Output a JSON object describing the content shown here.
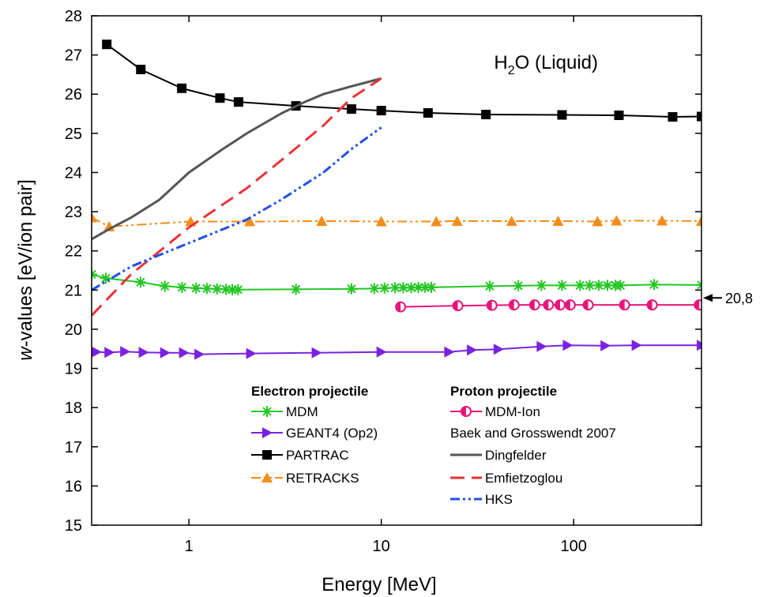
{
  "chart_data": {
    "type": "line",
    "title": [
      "H",
      "2",
      "O (Liquid)"
    ],
    "xlabel": "Energy [MeV]",
    "ylabel": [
      "w",
      "-values [eV/ion pair]"
    ],
    "xscale": "log",
    "xlim": [
      0.312,
      462
    ],
    "xticks": [
      1,
      10,
      100
    ],
    "ylim": [
      15,
      28
    ],
    "yticks": [
      15,
      16,
      17,
      18,
      19,
      20,
      21,
      22,
      23,
      24,
      25,
      26,
      27,
      28
    ],
    "legend_headings": [
      "Electron projectile",
      "Proton projectile",
      "Baek and Grosswendt 2007"
    ],
    "annotation": {
      "value": 20.8,
      "label": "20,8"
    },
    "series": [
      {
        "name": "MDM",
        "color": "#22c722",
        "marker": "asterisk",
        "dash": "solid",
        "x": [
          0.312,
          0.37,
          0.56,
          0.75,
          0.92,
          1.09,
          1.24,
          1.4,
          1.56,
          1.68,
          1.8,
          3.6,
          7,
          9.2,
          10.4,
          11.8,
          13,
          14.3,
          15.6,
          16.9,
          18.2,
          36.6,
          51.6,
          68,
          87,
          108,
          121,
          135,
          150,
          165,
          175,
          262,
          462
        ],
        "values": [
          21.4,
          21.3,
          21.2,
          21.1,
          21.07,
          21.05,
          21.04,
          21.03,
          21.02,
          21.01,
          21.01,
          21.02,
          21.03,
          21.04,
          21.05,
          21.06,
          21.06,
          21.06,
          21.07,
          21.07,
          21.07,
          21.1,
          21.11,
          21.12,
          21.12,
          21.12,
          21.12,
          21.12,
          21.12,
          21.12,
          21.12,
          21.14,
          21.13
        ]
      },
      {
        "name": "GEANT4 (Op2)",
        "color": "#7a22e0",
        "marker": "triangle-right",
        "dash": "solid",
        "x": [
          0.33,
          0.385,
          0.465,
          0.58,
          0.75,
          0.94,
          1.13,
          2.1,
          4.6,
          10,
          22.5,
          29.5,
          40.6,
          68,
          93,
          146,
          212,
          462
        ],
        "values": [
          19.42,
          19.41,
          19.43,
          19.41,
          19.4,
          19.4,
          19.36,
          19.38,
          19.4,
          19.42,
          19.42,
          19.47,
          19.49,
          19.56,
          19.59,
          19.58,
          19.59,
          19.59
        ]
      },
      {
        "name": "PARTRAC",
        "color": "#000000",
        "marker": "square",
        "dash": "solid",
        "x": [
          0.374,
          0.562,
          0.918,
          1.45,
          1.81,
          3.6,
          7,
          10,
          17.5,
          35,
          87,
          172,
          327,
          462
        ],
        "values": [
          27.27,
          26.63,
          26.15,
          25.9,
          25.8,
          25.7,
          25.62,
          25.58,
          25.52,
          25.48,
          25.47,
          25.46,
          25.42,
          25.43
        ]
      },
      {
        "name": "RETRACKS",
        "color": "#f28c1a",
        "marker": "triangle-up",
        "dash": "dashdotdot",
        "x": [
          0.312,
          0.385,
          1.02,
          2.07,
          4.9,
          10,
          19.3,
          24.8,
          47.6,
          83,
          133,
          167,
          288,
          462
        ],
        "values": [
          22.85,
          22.62,
          22.75,
          22.75,
          22.76,
          22.75,
          22.75,
          22.76,
          22.76,
          22.76,
          22.75,
          22.77,
          22.77,
          22.76
        ]
      },
      {
        "name": "MDM-Ion",
        "color": "#e8157a",
        "marker": "half-circle",
        "dash": "solid",
        "x": [
          12.6,
          25,
          37.6,
          49,
          62.7,
          74,
          85,
          96,
          119,
          184,
          256,
          450
        ],
        "values": [
          20.57,
          20.6,
          20.61,
          20.62,
          20.62,
          20.62,
          20.62,
          20.62,
          20.62,
          20.62,
          20.62,
          20.62
        ]
      },
      {
        "name": "Dingfelder",
        "color": "#555555",
        "marker": null,
        "dash": "solid",
        "x": [
          0.312,
          0.4,
          0.5,
          0.7,
          1,
          1.5,
          2,
          3,
          4,
          5,
          7,
          10
        ],
        "values": [
          22.3,
          22.6,
          22.85,
          23.3,
          24.0,
          24.6,
          25.0,
          25.5,
          25.8,
          26.0,
          26.2,
          26.4
        ]
      },
      {
        "name": "Emfietzoglou",
        "color": "#e8343a",
        "marker": null,
        "dash": "dash",
        "x": [
          0.312,
          0.5,
          1,
          2,
          3,
          5,
          7,
          10
        ],
        "values": [
          20.35,
          21.4,
          22.6,
          23.6,
          24.3,
          25.2,
          25.9,
          26.4
        ]
      },
      {
        "name": "HKS",
        "color": "#1f4fe6",
        "marker": null,
        "dash": "dashdotdot",
        "x": [
          0.312,
          0.5,
          1,
          2,
          3,
          5,
          7,
          10
        ],
        "values": [
          21.0,
          21.6,
          22.2,
          22.8,
          23.3,
          24.0,
          24.6,
          25.15
        ]
      }
    ]
  }
}
